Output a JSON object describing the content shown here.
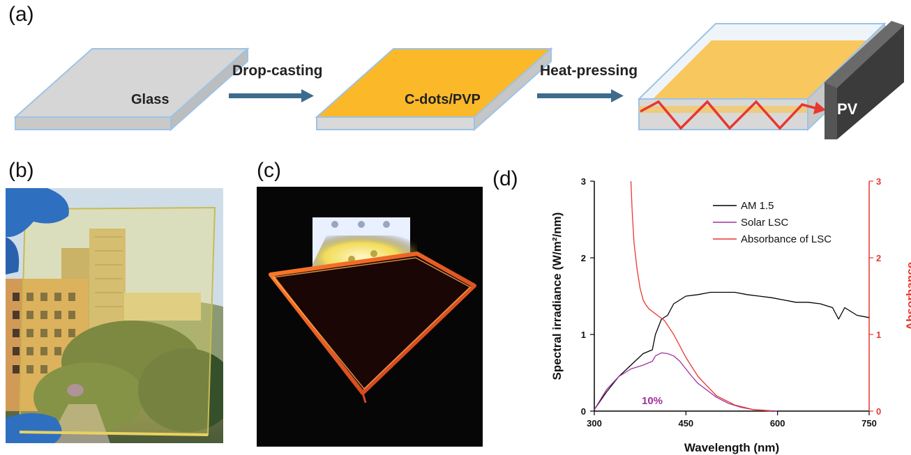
{
  "panels": {
    "a": {
      "label": "(a)"
    },
    "b": {
      "label": "(b)"
    },
    "c": {
      "label": "(c)"
    },
    "d": {
      "label": "(d)"
    }
  },
  "schematic": {
    "step1_label": "Glass",
    "arrow1_label": "Drop-casting",
    "step2_label": "C-dots/PVP",
    "arrow2_label": "Heat-pressing",
    "pv_label": "PV",
    "colors": {
      "glass": "#d6d6d6",
      "film": "#fbb829",
      "edge": "#9cc3e6",
      "arrow": "#3d6b8c",
      "light_path": "#e8372e",
      "pv": "#3b3b3b"
    }
  },
  "chart_data": {
    "type": "line",
    "xlabel": "Wavelength (nm)",
    "ylabel": "Spectral irradiance (W/m²/nm)",
    "ylabel2": "Absorbance",
    "xlim": [
      300,
      750
    ],
    "ylim": [
      0,
      3
    ],
    "ylim2": [
      0,
      3
    ],
    "x_ticks": [
      "300",
      "450",
      "600",
      "750"
    ],
    "y_ticks": [
      "0",
      "1",
      "2",
      "3"
    ],
    "y2_ticks": [
      "0",
      "1",
      "2",
      "3"
    ],
    "annotation": "10%",
    "legend_position": "top-right",
    "series": [
      {
        "name": "AM 1.5",
        "axis": "left",
        "color": "#000000",
        "x": [
          300,
          320,
          340,
          360,
          380,
          395,
          400,
          410,
          420,
          430,
          440,
          450,
          470,
          490,
          510,
          530,
          550,
          570,
          590,
          610,
          630,
          650,
          670,
          690,
          700,
          710,
          720,
          730,
          750
        ],
        "y": [
          0.02,
          0.25,
          0.45,
          0.6,
          0.75,
          0.8,
          1.0,
          1.2,
          1.25,
          1.4,
          1.45,
          1.5,
          1.52,
          1.55,
          1.55,
          1.55,
          1.52,
          1.5,
          1.48,
          1.45,
          1.42,
          1.42,
          1.4,
          1.35,
          1.2,
          1.35,
          1.3,
          1.25,
          1.22
        ]
      },
      {
        "name": "Solar LSC",
        "axis": "left",
        "color": "#a0309c",
        "x": [
          300,
          320,
          340,
          360,
          380,
          395,
          400,
          410,
          420,
          430,
          440,
          450,
          460,
          470,
          480,
          490,
          500,
          520,
          540,
          560,
          580,
          600
        ],
        "y": [
          0.02,
          0.28,
          0.45,
          0.55,
          0.6,
          0.65,
          0.72,
          0.76,
          0.75,
          0.72,
          0.65,
          0.55,
          0.45,
          0.36,
          0.3,
          0.24,
          0.18,
          0.1,
          0.05,
          0.02,
          0.01,
          0.0
        ]
      },
      {
        "name": "Absorbance of LSC",
        "axis": "right",
        "color": "#e8372e",
        "x": [
          360,
          362,
          365,
          370,
          375,
          380,
          385,
          390,
          395,
          400,
          405,
          410,
          415,
          420,
          430,
          440,
          450,
          470,
          500,
          530,
          560,
          590
        ],
        "y": [
          3.0,
          2.6,
          2.2,
          1.85,
          1.6,
          1.45,
          1.38,
          1.33,
          1.3,
          1.27,
          1.24,
          1.21,
          1.18,
          1.12,
          1.0,
          0.85,
          0.7,
          0.45,
          0.2,
          0.08,
          0.02,
          0.0
        ]
      }
    ]
  }
}
